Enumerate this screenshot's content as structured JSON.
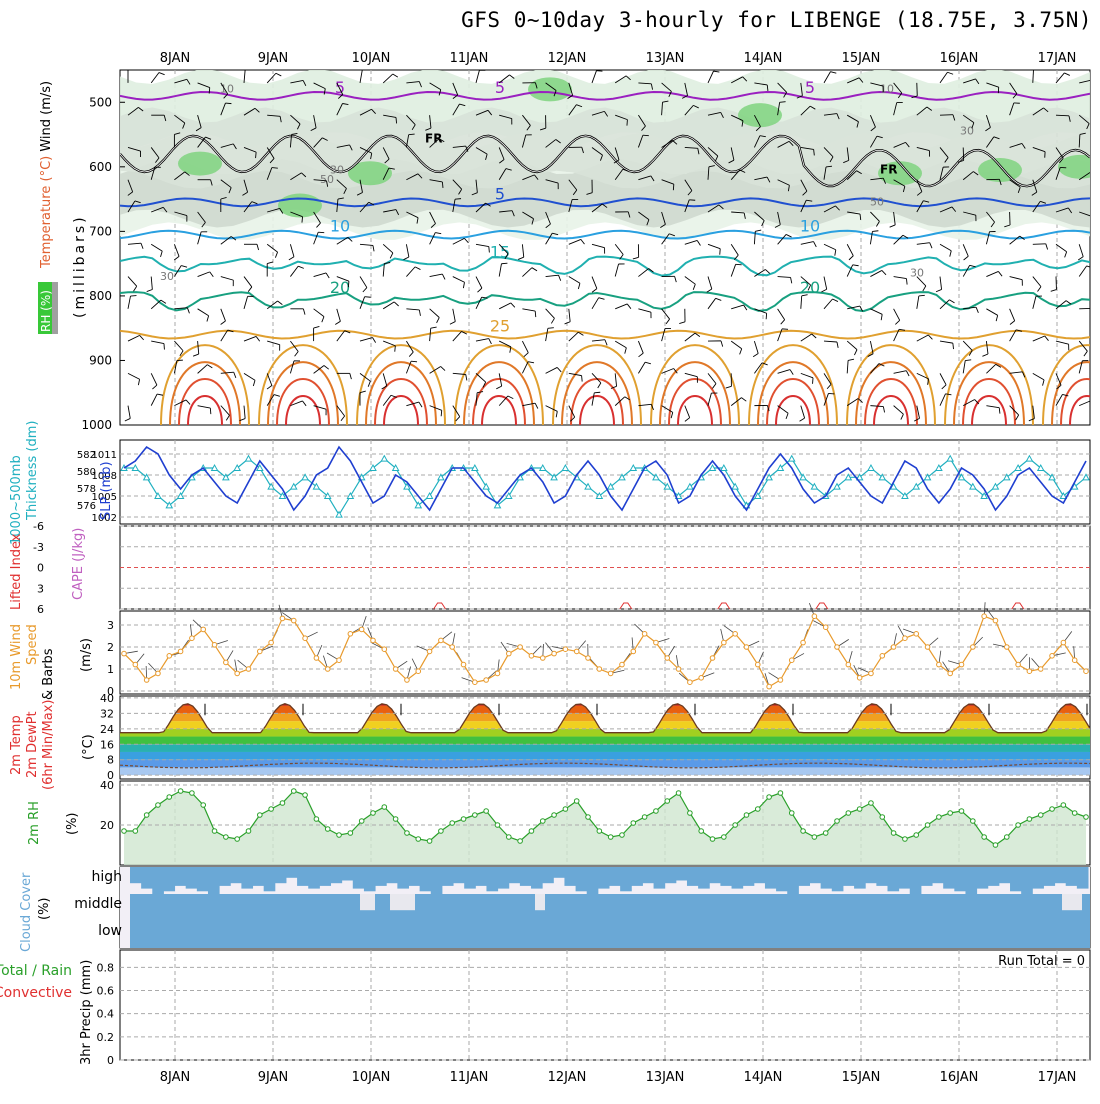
{
  "title": "GFS 0~10day 3-hourly for LIBENGE (18.75E, 3.75N)",
  "chart_data": {
    "type": "meteogram",
    "dates": [
      "8JAN",
      "9JAN",
      "10JAN",
      "11JAN",
      "12JAN",
      "13JAN",
      "14JAN",
      "15JAN",
      "16JAN",
      "17JAN"
    ],
    "colors": {
      "grid": "#aaaaaa",
      "slp": "#1f3fd0",
      "thickness": "#20b0c0",
      "wind": "#e89a2c",
      "rh": "#2aa02a",
      "cloud": "#6aa8d6",
      "li": "#e03030"
    },
    "panels": [
      {
        "id": "upper-air",
        "label_lines": [
          {
            "text": "Wind",
            "color": "#000000"
          },
          {
            "text": "(m/s)",
            "color": "#000000"
          },
          {
            "text": "Temperature",
            "color": "#e06030"
          },
          {
            "text": "(°C)",
            "color": "#e06030"
          },
          {
            "text": "RH (%)",
            "color": "#008000"
          },
          {
            "text": "(millibars)",
            "color": "#000000"
          }
        ],
        "y_ticks": [
          "500",
          "600",
          "700",
          "800",
          "900",
          "1000"
        ],
        "y_range": [
          450,
          1000
        ],
        "temperature_contours": [
          {
            "value": 5,
            "label": "5",
            "color": "#9a20c0",
            "level": 490
          },
          {
            "value": 5,
            "label": "5",
            "color": "#2050d0",
            "level": 655
          },
          {
            "value": 10,
            "label": "10",
            "color": "#2aa0e0",
            "level": 705
          },
          {
            "value": 15,
            "label": "15",
            "color": "#20b0b0",
            "level": 745
          },
          {
            "value": 20,
            "label": "20",
            "color": "#18a080",
            "level": 800
          },
          {
            "value": 25,
            "label": "25",
            "color": "#e0a030",
            "level": 860
          }
        ],
        "freezing_label": "FR",
        "rh_labels": [
          "10",
          "30",
          "50",
          "30",
          "10",
          "30",
          "50",
          "30"
        ]
      },
      {
        "id": "slp-thickness",
        "label_lines": [
          {
            "text": "SLP (mb)",
            "color": "#1f3fd0"
          },
          {
            "text": "1000~500mb",
            "color": "#20b0c0"
          },
          {
            "text": "Thickness (dm)",
            "color": "#20b0c0"
          }
        ],
        "left_ticks": [
          "582",
          "580",
          "578",
          "576"
        ],
        "right_ticks": [
          "1011",
          "1008",
          "1005",
          "1002"
        ],
        "slp_mb": [
          1009,
          1010,
          1012,
          1011,
          1008,
          1006,
          1008,
          1009,
          1007,
          1005,
          1004,
          1007,
          1010,
          1008,
          1006,
          1003,
          1005,
          1008,
          1009,
          1012,
          1010,
          1007,
          1004,
          1005,
          1008,
          1007,
          1005,
          1003,
          1006,
          1009,
          1009,
          1007,
          1005,
          1004,
          1006,
          1008,
          1009,
          1007,
          1004,
          1005,
          1008,
          1010,
          1008,
          1005,
          1003,
          1006,
          1009,
          1010,
          1008,
          1004,
          1005,
          1008,
          1010,
          1008,
          1005,
          1003,
          1006,
          1009,
          1011,
          1009,
          1006,
          1004,
          1005,
          1008,
          1009,
          1007,
          1005,
          1004,
          1007,
          1010,
          1009,
          1006,
          1004,
          1006,
          1009,
          1008,
          1006,
          1003,
          1005,
          1008,
          1009,
          1007,
          1005,
          1004,
          1007,
          1010
        ],
        "thickness_dm": [
          580,
          580,
          579,
          577,
          576,
          577,
          579,
          580,
          580,
          579,
          580,
          581,
          580,
          578,
          577,
          578,
          579,
          578,
          577,
          575,
          577,
          579,
          580,
          581,
          580,
          578,
          576,
          577,
          579,
          580,
          580,
          580,
          578,
          576,
          577,
          579,
          580,
          580,
          579,
          580,
          579,
          578,
          577,
          578,
          579,
          580,
          580,
          579,
          578,
          577,
          578,
          579,
          580,
          580,
          578,
          576,
          577,
          579,
          580,
          581,
          579,
          578,
          577,
          578,
          579,
          579,
          580,
          579,
          578,
          577,
          578,
          579,
          580,
          581,
          579,
          578,
          577,
          578,
          579,
          580,
          581,
          580,
          579,
          577,
          578,
          579
        ]
      },
      {
        "id": "stability",
        "label_lines": [
          {
            "text": "Lifted Index",
            "color": "#e03030"
          },
          {
            "text": "CAPE (J/kg)",
            "color": "#c060c0"
          }
        ],
        "y_ticks": [
          "-6",
          "-3",
          "0",
          "3",
          "6"
        ],
        "lifted_index_bumps": [
          10.7,
          12.6,
          13.6,
          14.6,
          16.6
        ]
      },
      {
        "id": "wind10m",
        "label_lines": [
          {
            "text": "10m Wind",
            "color": "#e89a2c"
          },
          {
            "text": "Speed",
            "color": "#e89a2c"
          },
          {
            "text": "& Barbs",
            "color": "#000000"
          },
          {
            "text": "(m/s)",
            "color": "#000000"
          }
        ],
        "y_ticks": [
          "3",
          "2",
          "1",
          "0"
        ],
        "y_range": [
          0,
          3.5
        ],
        "speed_ms": [
          1.7,
          1.2,
          0.5,
          0.8,
          1.6,
          1.8,
          2.4,
          2.8,
          2.1,
          1.3,
          0.8,
          1.0,
          1.8,
          2.2,
          3.3,
          3.2,
          2.4,
          1.5,
          1.0,
          1.4,
          2.6,
          2.8,
          2.3,
          1.9,
          1.0,
          0.5,
          0.9,
          1.8,
          2.3,
          2.0,
          1.2,
          0.4,
          0.5,
          0.8,
          1.7,
          2.0,
          1.6,
          1.5,
          1.7,
          1.9,
          1.8,
          1.5,
          1.0,
          0.8,
          1.2,
          1.8,
          2.6,
          2.2,
          1.5,
          1.0,
          0.4,
          0.6,
          1.5,
          2.2,
          2.6,
          2.0,
          1.2,
          0.2,
          0.5,
          1.4,
          2.2,
          3.4,
          2.9,
          2.0,
          1.2,
          0.6,
          0.8,
          1.6,
          2.0,
          2.4,
          2.6,
          2.0,
          1.2,
          0.8,
          1.2,
          2.0,
          3.4,
          3.2,
          2.0,
          1.2,
          0.9,
          1.0,
          1.6,
          2.2,
          1.4,
          0.9
        ]
      },
      {
        "id": "temp2m",
        "label_lines": [
          {
            "text": "2m Temp",
            "color": "#e03030"
          },
          {
            "text": "2m DewPt",
            "color": "#e03030"
          },
          {
            "text": "(6hr Min/Max)",
            "color": "#e03030"
          },
          {
            "text": "(°C)",
            "color": "#000000"
          }
        ],
        "y_ticks": [
          "40",
          "32",
          "24",
          "16",
          "8",
          "0"
        ],
        "y_range": [
          -2,
          41
        ],
        "min_c": 22,
        "max_c": 37,
        "dewpoint_c": 5
      },
      {
        "id": "rh2m",
        "label_lines": [
          {
            "text": "2m RH",
            "color": "#2aa02a"
          },
          {
            "text": "(%)",
            "color": "#000000"
          }
        ],
        "y_ticks": [
          "40",
          "20"
        ],
        "y_range": [
          0,
          42
        ],
        "rh_pct": [
          17,
          17,
          25,
          30,
          34,
          37,
          36,
          30,
          17,
          14,
          13,
          17,
          25,
          28,
          31,
          37,
          35,
          23,
          18,
          15,
          16,
          22,
          26,
          29,
          23,
          16,
          13,
          12,
          17,
          21,
          23,
          25,
          27,
          20,
          14,
          12,
          17,
          22,
          25,
          28,
          32,
          24,
          17,
          14,
          15,
          21,
          24,
          27,
          32,
          36,
          26,
          17,
          13,
          14,
          20,
          25,
          28,
          34,
          36,
          26,
          17,
          14,
          16,
          22,
          26,
          28,
          31,
          24,
          16,
          13,
          15,
          20,
          24,
          26,
          27,
          22,
          14,
          10,
          14,
          20,
          23,
          25,
          28,
          30,
          26,
          24
        ]
      },
      {
        "id": "cloud",
        "label_lines": [
          {
            "text": "Cloud Cover",
            "color": "#6aa8d6"
          },
          {
            "text": "(%)",
            "color": "#000000"
          }
        ],
        "y_ticks": [
          "high",
          "middle",
          "low"
        ],
        "high_pct": [
          60,
          80,
          100,
          90,
          70,
          80,
          90,
          100,
          70,
          60,
          80,
          70,
          90,
          60,
          40,
          70,
          80,
          70,
          60,
          50,
          80,
          90,
          70,
          60,
          80,
          70,
          90,
          100,
          70,
          60,
          80,
          70,
          90,
          80,
          60,
          70,
          80,
          60,
          40,
          70,
          90,
          100,
          80,
          70,
          90,
          70,
          60,
          80,
          60,
          50,
          70,
          80,
          60,
          70,
          80,
          70,
          60,
          80,
          90,
          100,
          70,
          60,
          80,
          90,
          70,
          80,
          60,
          70,
          90,
          80,
          100,
          70,
          60,
          80,
          90,
          100,
          80,
          70,
          60,
          90,
          100,
          80,
          70,
          60,
          70,
          80
        ]
      },
      {
        "id": "precip",
        "label_lines": [
          {
            "text": "Total / Rain",
            "color": "#2aa02a"
          },
          {
            "text": "Convective",
            "color": "#e03030"
          },
          {
            "text": "3hr Precip (mm)",
            "color": "#000000"
          }
        ],
        "y_ticks": [
          "0.8",
          "0.6",
          "0.4",
          "0.2",
          "0"
        ],
        "run_total_label": "Run Total = 0"
      }
    ]
  }
}
